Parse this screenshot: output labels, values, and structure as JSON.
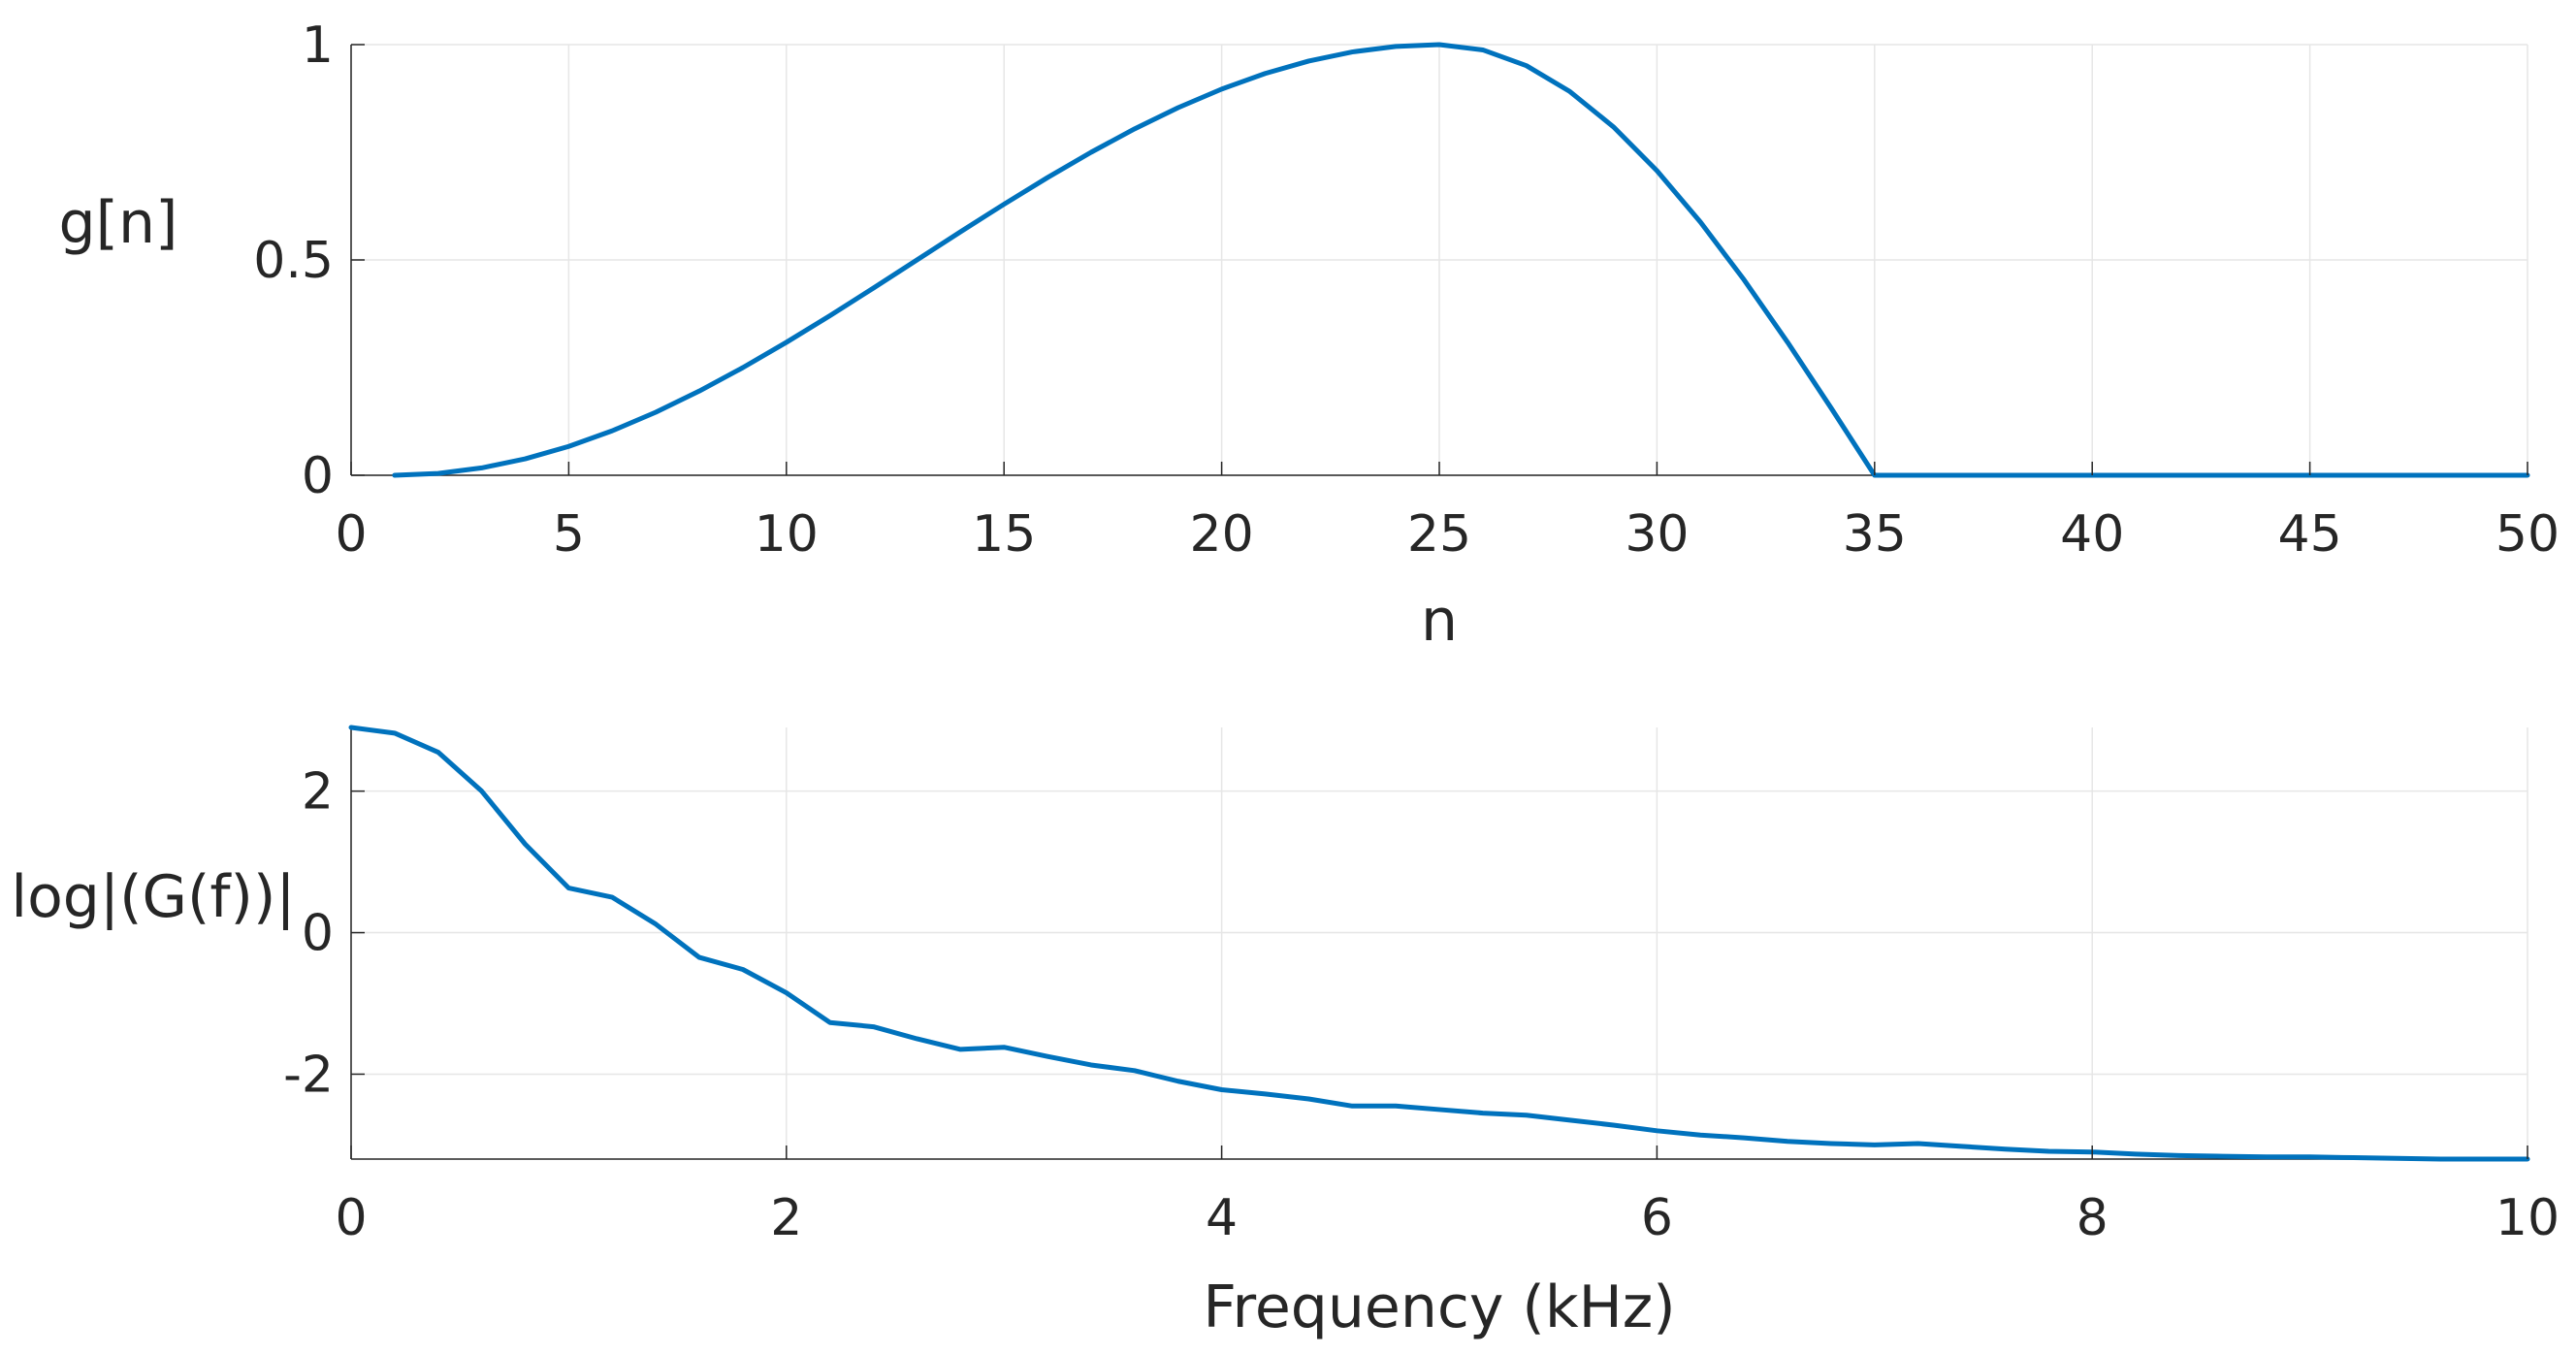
{
  "chart_data": [
    {
      "type": "line",
      "xlabel": "n",
      "ylabel": "g[n]",
      "xlim": [
        0,
        50
      ],
      "ylim": [
        0,
        1
      ],
      "xticks": [
        0,
        5,
        10,
        15,
        20,
        25,
        30,
        35,
        40,
        45,
        50
      ],
      "xtick_labels": [
        "0",
        "5",
        "10",
        "15",
        "20",
        "25",
        "30",
        "35",
        "40",
        "45",
        "50"
      ],
      "yticks": [
        0,
        0.5,
        1
      ],
      "ytick_labels": [
        "0",
        "0.5",
        "1"
      ],
      "grid": true,
      "color": "#0072BD",
      "series": [
        {
          "name": "g[n]",
          "x": [
            1,
            2,
            3,
            4,
            5,
            6,
            7,
            8,
            9,
            10,
            11,
            12,
            13,
            14,
            15,
            16,
            17,
            18,
            19,
            20,
            21,
            22,
            23,
            24,
            25,
            26,
            27,
            28,
            29,
            30,
            31,
            32,
            33,
            34,
            35,
            36,
            37,
            38,
            39,
            40,
            41,
            42,
            43,
            44,
            45,
            46,
            47,
            48,
            49,
            50
          ],
          "values": [
            0.0,
            0.0043,
            0.0171,
            0.0381,
            0.067,
            0.1033,
            0.1464,
            0.1956,
            0.25,
            0.3087,
            0.3706,
            0.4347,
            0.5,
            0.5653,
            0.6294,
            0.6913,
            0.75,
            0.8044,
            0.8536,
            0.8967,
            0.933,
            0.9619,
            0.983,
            0.9957,
            1.0,
            0.9877,
            0.9511,
            0.891,
            0.809,
            0.7071,
            0.5878,
            0.454,
            0.309,
            0.1564,
            0.0,
            0,
            0,
            0,
            0,
            0,
            0,
            0,
            0,
            0,
            0,
            0,
            0,
            0,
            0,
            0
          ]
        }
      ]
    },
    {
      "type": "line",
      "xlabel": "Frequency (kHz)",
      "ylabel": "log|(G(f))|",
      "xlim": [
        0,
        10
      ],
      "ylim": [
        -3.2,
        2.9
      ],
      "xticks": [
        0,
        2,
        4,
        6,
        8,
        10
      ],
      "xtick_labels": [
        "0",
        "2",
        "4",
        "6",
        "8",
        "10"
      ],
      "yticks": [
        2,
        0,
        -2
      ],
      "ytick_labels": [
        "2",
        "0",
        "-2"
      ],
      "grid": true,
      "color": "#0072BD",
      "series": [
        {
          "name": "log|G(f)|",
          "x": [
            0,
            0.2,
            0.4,
            0.6,
            0.8,
            1.0,
            1.2,
            1.4,
            1.6,
            1.8,
            2.0,
            2.2,
            2.4,
            2.6,
            2.8,
            3.0,
            3.2,
            3.4,
            3.6,
            3.8,
            4.0,
            4.2,
            4.4,
            4.6,
            4.8,
            5.0,
            5.2,
            5.4,
            5.6,
            5.8,
            6.0,
            6.2,
            6.4,
            6.6,
            6.8,
            7.0,
            7.2,
            7.4,
            7.6,
            7.8,
            8.0,
            8.2,
            8.4,
            8.6,
            8.8,
            9.0,
            9.2,
            9.4,
            9.6,
            9.8,
            10.0
          ],
          "values": [
            2.9,
            2.82,
            2.55,
            2.0,
            1.25,
            0.63,
            0.5,
            0.12,
            -0.35,
            -0.52,
            -0.85,
            -1.27,
            -1.33,
            -1.5,
            -1.65,
            -1.62,
            -1.75,
            -1.87,
            -1.95,
            -2.1,
            -2.22,
            -2.28,
            -2.35,
            -2.45,
            -2.45,
            -2.5,
            -2.55,
            -2.58,
            -2.65,
            -2.72,
            -2.8,
            -2.86,
            -2.9,
            -2.95,
            -2.98,
            -3.0,
            -2.98,
            -3.02,
            -3.06,
            -3.09,
            -3.1,
            -3.13,
            -3.15,
            -3.16,
            -3.17,
            -3.17,
            -3.18,
            -3.19,
            -3.2,
            -3.2,
            -3.2
          ]
        }
      ]
    }
  ]
}
